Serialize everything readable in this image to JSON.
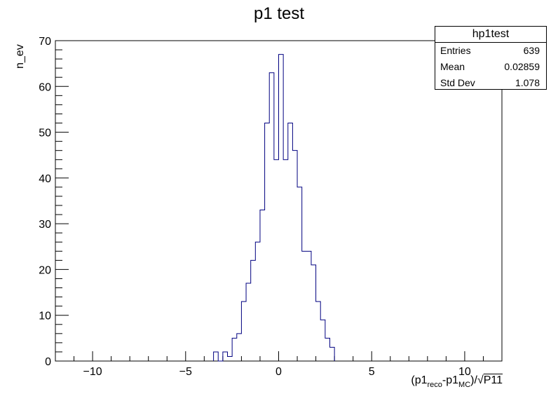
{
  "title": "p1 test",
  "stats": {
    "name": "hp1test",
    "entries_label": "Entries",
    "entries_value": "639",
    "mean_label": "Mean",
    "mean_value": "0.02859",
    "std_label": "Std Dev",
    "std_value": "1.078"
  },
  "axis_labels": {
    "y": "n_ev",
    "x_main": "(p1",
    "x_sub1": "reco",
    "x_mid": "-p1",
    "x_sub2": "MC",
    "x_tail": ")/",
    "x_root": "P11"
  },
  "colors": {
    "line": "#000080",
    "axis": "#000000"
  },
  "chart_data": {
    "type": "histogram",
    "title": "p1 test",
    "xlabel": "(p1_reco-p1_MC)/√P11",
    "ylabel": "n_ev",
    "xlim": [
      -12,
      12
    ],
    "ylim": [
      0,
      70
    ],
    "x_ticks": [
      -10,
      -5,
      0,
      5,
      10
    ],
    "y_ticks": [
      0,
      10,
      20,
      30,
      40,
      50,
      60,
      70
    ],
    "bins": [
      {
        "lo": -3.5,
        "hi": -3.25,
        "count": 2
      },
      {
        "lo": -3.25,
        "hi": -3.0,
        "count": 0
      },
      {
        "lo": -3.0,
        "hi": -2.75,
        "count": 2
      },
      {
        "lo": -2.75,
        "hi": -2.5,
        "count": 1
      },
      {
        "lo": -2.5,
        "hi": -2.25,
        "count": 5
      },
      {
        "lo": -2.25,
        "hi": -2.0,
        "count": 6
      },
      {
        "lo": -2.0,
        "hi": -1.75,
        "count": 13
      },
      {
        "lo": -1.75,
        "hi": -1.5,
        "count": 17
      },
      {
        "lo": -1.5,
        "hi": -1.25,
        "count": 22
      },
      {
        "lo": -1.25,
        "hi": -1.0,
        "count": 26
      },
      {
        "lo": -1.0,
        "hi": -0.75,
        "count": 33
      },
      {
        "lo": -0.75,
        "hi": -0.5,
        "count": 52
      },
      {
        "lo": -0.5,
        "hi": -0.25,
        "count": 63
      },
      {
        "lo": -0.25,
        "hi": 0.0,
        "count": 44
      },
      {
        "lo": 0.0,
        "hi": 0.25,
        "count": 67
      },
      {
        "lo": 0.25,
        "hi": 0.5,
        "count": 44
      },
      {
        "lo": 0.5,
        "hi": 0.75,
        "count": 52
      },
      {
        "lo": 0.75,
        "hi": 1.0,
        "count": 46
      },
      {
        "lo": 1.0,
        "hi": 1.25,
        "count": 38
      },
      {
        "lo": 1.25,
        "hi": 1.5,
        "count": 24
      },
      {
        "lo": 1.5,
        "hi": 1.75,
        "count": 24
      },
      {
        "lo": 1.75,
        "hi": 2.0,
        "count": 21
      },
      {
        "lo": 2.0,
        "hi": 2.25,
        "count": 13
      },
      {
        "lo": 2.25,
        "hi": 2.5,
        "count": 9
      },
      {
        "lo": 2.5,
        "hi": 2.75,
        "count": 5
      },
      {
        "lo": 2.75,
        "hi": 3.0,
        "count": 3
      }
    ],
    "grid": false,
    "legend": "stats box top-right"
  }
}
